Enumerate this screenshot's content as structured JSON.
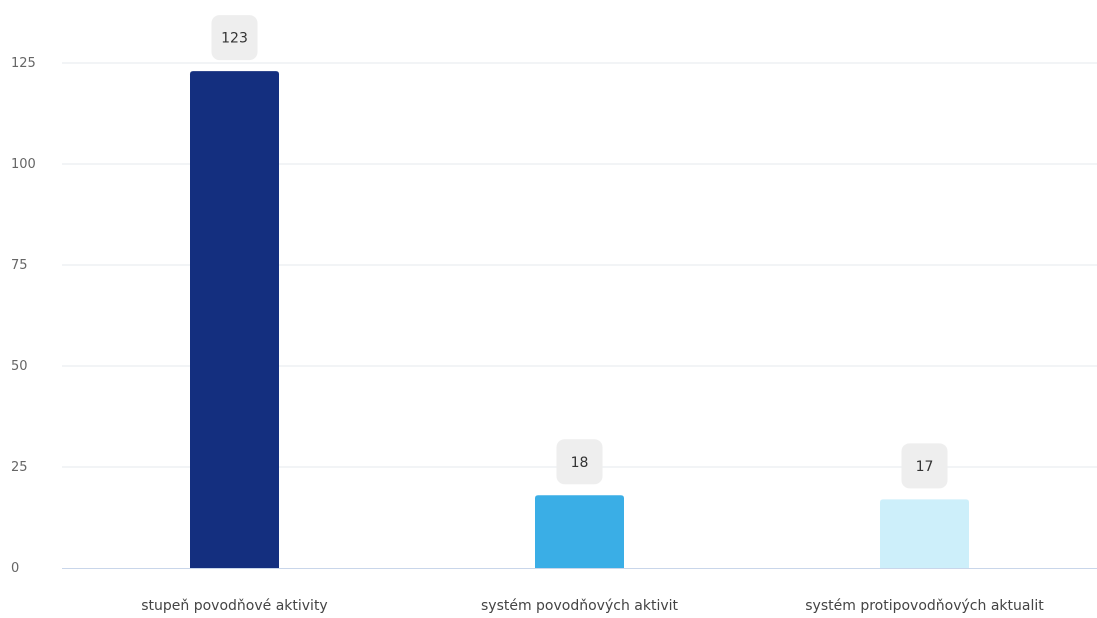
{
  "chart_data": {
    "type": "bar",
    "title": "",
    "xlabel": "",
    "ylabel": "",
    "categories": [
      "stupeň povodňové aktivity",
      "systém povodňových aktivit",
      "systém protipovodňových aktualit"
    ],
    "values": [
      123,
      18,
      17
    ],
    "data_labels": [
      "123",
      "18",
      "17"
    ],
    "ylim": [
      0,
      125
    ],
    "yticks": [
      0,
      25,
      50,
      75,
      100,
      125
    ],
    "ytick_labels": [
      "0",
      "25",
      "50",
      "75",
      "100",
      "125"
    ],
    "grid": true,
    "legend": "none",
    "colors": [
      "#142f7f",
      "#3aaee6",
      "#cdeffa"
    ],
    "data_label_background": "#eeeeee",
    "grid_color": "#e6e9ee",
    "axis_color": "#c9d6ea"
  }
}
